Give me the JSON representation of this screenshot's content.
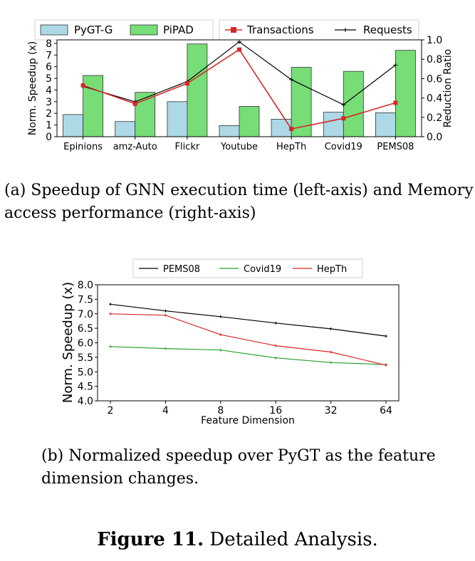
{
  "chart_data": [
    {
      "type": "bar",
      "categories": [
        "Epinions",
        "amz-Auto",
        "Flickr",
        "Youtube",
        "HepTh",
        "Covid19",
        "PEMS08"
      ],
      "series": [
        {
          "name": "PyGT-G",
          "axis": "left",
          "color": "#add8e6",
          "values": [
            1.9,
            1.3,
            3.0,
            0.95,
            1.5,
            2.1,
            2.05
          ]
        },
        {
          "name": "PiPAD",
          "axis": "left",
          "color": "#77dd77",
          "values": [
            5.25,
            3.8,
            7.95,
            2.6,
            5.95,
            5.6,
            7.4
          ]
        },
        {
          "name": "Transactions",
          "axis": "right",
          "type": "line",
          "marker": "square",
          "color": "#d62728",
          "values": [
            0.53,
            0.34,
            0.55,
            0.9,
            0.08,
            0.19,
            0.35
          ]
        },
        {
          "name": "Requests",
          "axis": "right",
          "type": "line",
          "marker": "plus",
          "color": "#000000",
          "values": [
            0.52,
            0.36,
            0.57,
            0.98,
            0.59,
            0.33,
            0.74
          ]
        }
      ],
      "ylabel": "Norm. Speedup (x)",
      "ylabel_right": "Reduction Ratio",
      "ylim": [
        0,
        8.3
      ],
      "ylim_right": [
        0,
        1.0
      ],
      "yticks": [
        "0",
        "1",
        "2",
        "3",
        "4",
        "5",
        "6",
        "7",
        "8"
      ],
      "yticks_right": [
        "0.0",
        "0.2",
        "0.4",
        "0.6",
        "0.8",
        "1.0"
      ],
      "legend": "top"
    },
    {
      "type": "line",
      "x": [
        "2",
        "4",
        "8",
        "16",
        "32",
        "64"
      ],
      "series": [
        {
          "name": "PEMS08",
          "color": "#000000",
          "values": [
            7.33,
            7.1,
            6.9,
            6.68,
            6.48,
            6.23
          ]
        },
        {
          "name": "Covid19",
          "color": "#2ca02c",
          "values": [
            5.87,
            5.8,
            5.75,
            5.48,
            5.32,
            5.25
          ]
        },
        {
          "name": "HepTh",
          "color": "#d62728",
          "values": [
            7.0,
            6.95,
            6.28,
            5.9,
            5.68,
            5.23
          ]
        }
      ],
      "xlabel": "Feature Dimension",
      "ylabel": "Norm. Speedup (x)",
      "ylim": [
        4.0,
        8.0
      ],
      "yticks": [
        "4.0",
        "4.5",
        "5.0",
        "5.5",
        "6.0",
        "6.5",
        "7.0",
        "7.5",
        "8.0"
      ],
      "legend": "top"
    }
  ],
  "captions": {
    "a": "(a)  Speedup of GNN execution time (left-axis) and Memory access performance (right-axis)",
    "b": "(b)  Normalized speedup over PyGT as the feature dimension changes."
  },
  "figure": {
    "label": "Figure 11.",
    "title": "Detailed Analysis."
  }
}
